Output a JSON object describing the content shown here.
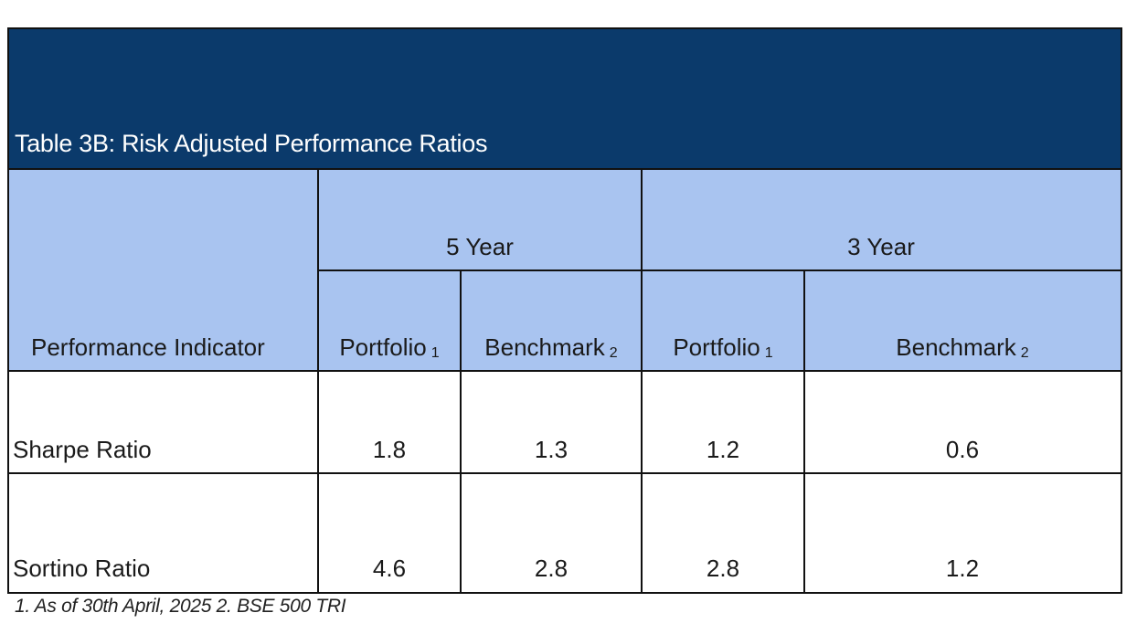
{
  "table": {
    "title": "Table 3B: Risk Adjusted Performance Ratios",
    "group_headers": {
      "five_year": "5 Year",
      "three_year": "3 Year"
    },
    "column_headers": {
      "indicator": "Performance Indicator",
      "portfolio": "Portfolio",
      "benchmark": "Benchmark",
      "portfolio_note": "1",
      "benchmark_note": "2"
    },
    "rows": [
      {
        "indicator": "Sharpe Ratio",
        "five_year_portfolio": "1.8",
        "five_year_benchmark": "1.3",
        "three_year_portfolio": "1.2",
        "three_year_benchmark": "0.6"
      },
      {
        "indicator": "Sortino Ratio",
        "five_year_portfolio": "4.6",
        "five_year_benchmark": "2.8",
        "three_year_portfolio": "2.8",
        "three_year_benchmark": "1.2"
      }
    ]
  },
  "footnote": "1. As of 30th April, 2025 2. BSE 500 TRI",
  "colors": {
    "title_background": "#0b3a6b",
    "header_background": "#a9c4f0",
    "title_text": "#ffffff",
    "grid_lines": "#111111"
  }
}
